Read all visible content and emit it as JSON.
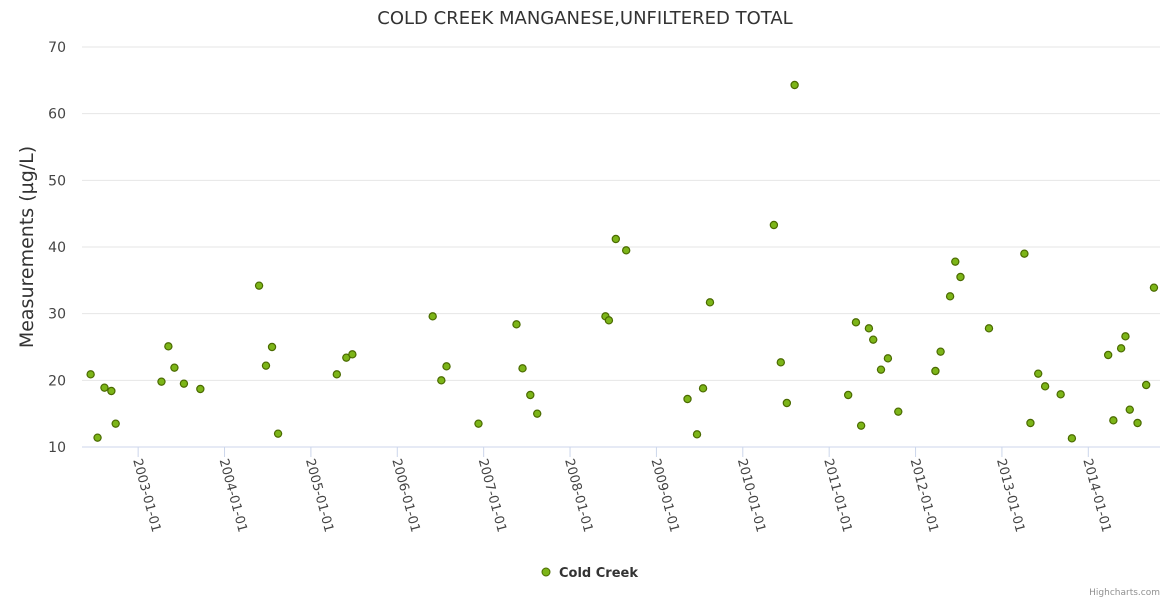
{
  "chart_data": {
    "type": "scatter",
    "title": "COLD CREEK MANGANESE,UNFILTERED TOTAL",
    "xlabel": "",
    "ylabel": "Measurements (µg/L)",
    "ylim": [
      10,
      70
    ],
    "yticks": [
      10,
      20,
      30,
      40,
      50,
      60,
      70
    ],
    "xlim": [
      2002.35,
      2014.83
    ],
    "xticks": [
      {
        "value": 2003,
        "label": "2003-01-01"
      },
      {
        "value": 2004,
        "label": "2004-01-01"
      },
      {
        "value": 2005,
        "label": "2005-01-01"
      },
      {
        "value": 2006,
        "label": "2006-01-01"
      },
      {
        "value": 2007,
        "label": "2007-01-01"
      },
      {
        "value": 2008,
        "label": "2008-01-01"
      },
      {
        "value": 2009,
        "label": "2009-01-01"
      },
      {
        "value": 2010,
        "label": "2010-01-01"
      },
      {
        "value": 2011,
        "label": "2011-01-01"
      },
      {
        "value": 2012,
        "label": "2012-01-01"
      },
      {
        "value": 2013,
        "label": "2013-01-01"
      },
      {
        "value": 2014,
        "label": "2014-01-01"
      }
    ],
    "grid": true,
    "legend": "bottom-center",
    "credit": "Highcharts.com",
    "series": [
      {
        "name": "Cold Creek",
        "color": "#7cb518",
        "edge_color": "#4a6a00",
        "points": [
          [
            2002.45,
            20.9
          ],
          [
            2002.53,
            11.4
          ],
          [
            2002.61,
            18.9
          ],
          [
            2002.69,
            18.4
          ],
          [
            2002.74,
            13.5
          ],
          [
            2003.27,
            19.8
          ],
          [
            2003.35,
            25.1
          ],
          [
            2003.42,
            21.9
          ],
          [
            2003.53,
            19.5
          ],
          [
            2003.72,
            18.7
          ],
          [
            2004.4,
            34.2
          ],
          [
            2004.48,
            22.2
          ],
          [
            2004.55,
            25.0
          ],
          [
            2004.62,
            12.0
          ],
          [
            2005.3,
            20.9
          ],
          [
            2005.41,
            23.4
          ],
          [
            2005.48,
            23.9
          ],
          [
            2006.41,
            29.6
          ],
          [
            2006.51,
            20.0
          ],
          [
            2006.57,
            22.1
          ],
          [
            2006.94,
            13.5
          ],
          [
            2007.38,
            28.4
          ],
          [
            2007.45,
            21.8
          ],
          [
            2007.54,
            17.8
          ],
          [
            2007.62,
            15.0
          ],
          [
            2008.41,
            29.6
          ],
          [
            2008.45,
            29.0
          ],
          [
            2008.53,
            41.2
          ],
          [
            2008.65,
            39.5
          ],
          [
            2009.36,
            17.2
          ],
          [
            2009.47,
            11.9
          ],
          [
            2009.54,
            18.8
          ],
          [
            2009.62,
            31.7
          ],
          [
            2010.36,
            43.3
          ],
          [
            2010.44,
            22.7
          ],
          [
            2010.51,
            16.6
          ],
          [
            2010.6,
            64.3
          ],
          [
            2011.22,
            17.8
          ],
          [
            2011.31,
            28.7
          ],
          [
            2011.37,
            13.2
          ],
          [
            2011.46,
            27.8
          ],
          [
            2011.51,
            26.1
          ],
          [
            2011.6,
            21.6
          ],
          [
            2011.68,
            23.3
          ],
          [
            2011.8,
            15.3
          ],
          [
            2012.23,
            21.4
          ],
          [
            2012.29,
            24.3
          ],
          [
            2012.4,
            32.6
          ],
          [
            2012.46,
            37.8
          ],
          [
            2012.52,
            35.5
          ],
          [
            2012.85,
            27.8
          ],
          [
            2013.26,
            39.0
          ],
          [
            2013.33,
            13.6
          ],
          [
            2013.42,
            21.0
          ],
          [
            2013.5,
            19.1
          ],
          [
            2013.68,
            17.9
          ],
          [
            2013.81,
            11.3
          ],
          [
            2014.23,
            23.8
          ],
          [
            2014.29,
            14.0
          ],
          [
            2014.38,
            24.8
          ],
          [
            2014.43,
            26.6
          ],
          [
            2014.48,
            15.6
          ],
          [
            2014.57,
            13.6
          ],
          [
            2014.67,
            19.3
          ],
          [
            2014.76,
            33.9
          ]
        ]
      }
    ]
  }
}
